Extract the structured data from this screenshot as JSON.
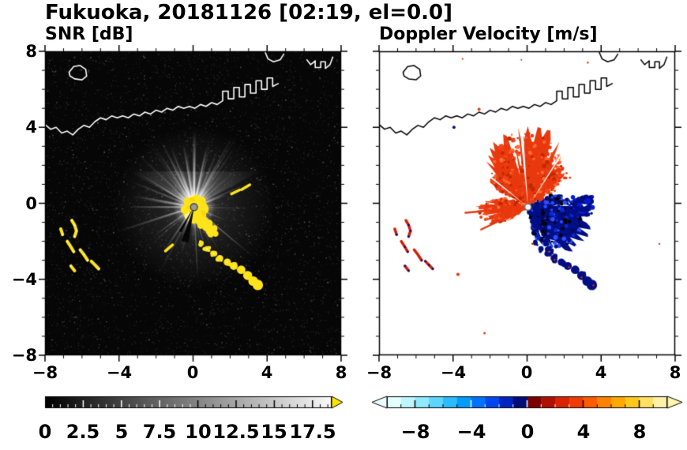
{
  "figure": {
    "title": "Fukuoka, 20181126 [02:19, el=0.0]",
    "station": "Fukuoka",
    "date": "20181126",
    "time": "02:19",
    "elevation": "0.0"
  },
  "chart_data": [
    {
      "id": "snr",
      "type": "heatmap",
      "title": "SNR [dB]",
      "quantity": "signal-to-noise ratio",
      "units": "dB",
      "xlim": [
        -8,
        8
      ],
      "ylim": [
        -8,
        8
      ],
      "xticks": [
        -8,
        -4,
        0,
        4,
        8
      ],
      "yticks": [
        -8,
        -4,
        0,
        4,
        8
      ],
      "xtick_labels": [
        "−8",
        "−4",
        "0",
        "4",
        "8"
      ],
      "ytick_labels": [
        "8",
        "4",
        "0",
        "−4",
        "−8"
      ],
      "minor_tick_step": 1,
      "background_color": "#060606",
      "radar_center": [
        0.05,
        -0.2
      ],
      "echo_summary": "Dark noisy background with bright white interference spokes radiating from the radar at the origin; strong yellow (high SNR) echo cluster just south-east of the radar; yellow clutter patches to the south-west near x=-6.5 and a chain of echoes running south-east toward (3.5,-4.3); Fukuoka coastline drawn in white.",
      "colorbar": {
        "range": [
          0,
          18.75
        ],
        "ticks": [
          0,
          2.5,
          5,
          7.5,
          10,
          12.5,
          15,
          17.5
        ],
        "tick_labels": [
          "0",
          "2.5",
          "5",
          "7.5",
          "10",
          "12.5",
          "15",
          "17.5"
        ],
        "minor_step": 0.5,
        "colors": [
          "#000000",
          "#fafafa"
        ],
        "over_arrow_color": "#ffe400"
      },
      "features": {
        "glow_radius": 1.15,
        "halo_radius": 4.4,
        "haze": {
          "angle": 90,
          "half_width": 62,
          "radius": 4.0
        },
        "random_ray_count": 80,
        "rays": [
          [
            90,
            4.0,
            3,
            0.75
          ],
          [
            100,
            3.4,
            2,
            0.6
          ],
          [
            78,
            3.1,
            2,
            0.6
          ],
          [
            62,
            2.6,
            2,
            0.5
          ],
          [
            48,
            2.2,
            1.5,
            0.45
          ],
          [
            115,
            2.9,
            2,
            0.55
          ],
          [
            130,
            2.5,
            1.5,
            0.5
          ],
          [
            150,
            2.2,
            1.5,
            0.4
          ],
          [
            170,
            3.3,
            2.5,
            0.65
          ],
          [
            180,
            3.6,
            2,
            0.6
          ],
          [
            196,
            2.4,
            1.5,
            0.45
          ],
          [
            215,
            2.7,
            1.5,
            0.5
          ],
          [
            235,
            2.9,
            2,
            0.5
          ],
          [
            250,
            2.2,
            1.5,
            0.45
          ],
          [
            268,
            2.0,
            1.5,
            0.4
          ],
          [
            285,
            2.3,
            1.5,
            0.45
          ],
          [
            300,
            2.6,
            1.5,
            0.5
          ],
          [
            318,
            2.2,
            1.5,
            0.45
          ],
          [
            338,
            1.9,
            1.5,
            0.4
          ],
          [
            20,
            2.0,
            1.5,
            0.4
          ],
          [
            5,
            1.7,
            1,
            0.35
          ]
        ],
        "echo_color": "#ffe41a",
        "echo_core": [
          0.1,
          -0.3
        ],
        "echo_tail": [
          [
            0.3,
            -0.8
          ],
          [
            1.05,
            -1.5
          ]
        ],
        "dash_echoes": [
          [
            2.85,
            0.85,
            30
          ],
          [
            2.3,
            0.6,
            25
          ],
          [
            -1.3,
            -2.35,
            40
          ]
        ],
        "shadow_wedges": [
          [
            255,
            6,
            1.9
          ],
          [
            240,
            3,
            1.5
          ]
        ]
      }
    },
    {
      "id": "velocity",
      "type": "heatmap",
      "title": "Doppler Velocity [m/s]",
      "quantity": "Doppler velocity",
      "units": "m/s",
      "xlim": [
        -8,
        8
      ],
      "ylim": [
        -8,
        8
      ],
      "xticks": [
        -8,
        -4,
        0,
        4,
        8
      ],
      "yticks": [
        -8,
        -4,
        0,
        4,
        8
      ],
      "xtick_labels": [
        "−8",
        "−4",
        "0",
        "4",
        "8"
      ],
      "ytick_labels": [
        "8",
        "4",
        "0",
        "−4",
        "−8"
      ],
      "minor_tick_step": 1,
      "background_color": "#ffffff",
      "radar_center": [
        0.05,
        -0.2
      ],
      "echo_summary": "Red positive velocities (about +2 to +4 m/s) fan out north and west of the radar; dark navy negative velocities (about 0 to -3 m/s) fill the sector east and south-east of the radar; the south-west clutter patches and the south-east echo chain appear as mixed red/navy fragments; coastline drawn in black.",
      "colorbar": {
        "range": [
          -10,
          10
        ],
        "ticks": [
          -8,
          -4,
          0,
          4,
          8
        ],
        "tick_labels": [
          "−8",
          "−4",
          "0",
          "4",
          "8"
        ],
        "minor_step": 1,
        "colors": [
          "#e4ffff",
          "#bdf6ff",
          "#8fe9ff",
          "#5cd6ff",
          "#2bbcff",
          "#009cff",
          "#0072ff",
          "#0047f0",
          "#0024c0",
          "#000c78",
          "#7c0000",
          "#b01000",
          "#d82400",
          "#f03c00",
          "#ff5c00",
          "#ff8200",
          "#ffa800",
          "#ffc81e",
          "#ffe060",
          "#fff2a8"
        ],
        "under_arrow_color": "#eeffff",
        "over_arrow_color": "#fff6b0"
      },
      "features": {
        "toward_color": "#e8380e",
        "away_color": "#000e85",
        "north_fan": {
          "a0": 35,
          "a1": 150,
          "r_base": 2.2,
          "r_amp": 2.0
        },
        "west_fan": {
          "a0": 158,
          "a1": 215,
          "r_base": 1.1,
          "r_amp": 1.7
        },
        "away_fan": {
          "a0": -80,
          "a1": 28,
          "r_base": 1.4,
          "r_amp": 2.0
        },
        "toward_rays": [
          [
            185,
            3.4
          ],
          [
            205,
            2.8
          ]
        ],
        "away_streak": [
          -62,
          3.2
        ],
        "white_slits": [
          [
            95,
            1.2
          ],
          [
            57,
            0.8
          ],
          [
            142,
            1.0
          ]
        ],
        "toward_speckles": [
          "#f04418",
          "#c22800",
          "#ff6a30",
          "#e8380e"
        ],
        "away_speckles": [
          "#000a60",
          "#0a2bd0",
          "#000000",
          "#2e4fff",
          "#000e85"
        ]
      }
    }
  ],
  "coastline": {
    "main": [
      [
        -8,
        4.15
      ],
      [
        -7.7,
        3.9
      ],
      [
        -7.4,
        4.0
      ],
      [
        -7.1,
        3.7
      ],
      [
        -6.8,
        3.8
      ],
      [
        -6.5,
        3.6
      ],
      [
        -6.2,
        3.9
      ],
      [
        -5.9,
        4.1
      ],
      [
        -5.6,
        4.0
      ],
      [
        -5.3,
        4.3
      ],
      [
        -5.0,
        4.5
      ],
      [
        -4.7,
        4.4
      ],
      [
        -4.4,
        4.6
      ],
      [
        -4.1,
        4.5
      ],
      [
        -3.8,
        4.6
      ],
      [
        -3.5,
        4.5
      ],
      [
        -3.2,
        4.7
      ],
      [
        -2.9,
        4.6
      ],
      [
        -2.6,
        4.8
      ],
      [
        -2.3,
        4.7
      ],
      [
        -2.0,
        4.9
      ],
      [
        -1.7,
        4.8
      ],
      [
        -1.4,
        5.0
      ],
      [
        -1.1,
        4.9
      ],
      [
        -0.8,
        5.1
      ],
      [
        -0.5,
        5.0
      ],
      [
        -0.2,
        5.1
      ],
      [
        0.1,
        5.0
      ],
      [
        0.4,
        5.2
      ],
      [
        0.7,
        5.1
      ],
      [
        1.0,
        5.3
      ],
      [
        1.3,
        5.2
      ],
      [
        1.6,
        5.4
      ],
      [
        1.6,
        5.9
      ],
      [
        1.9,
        5.9
      ],
      [
        1.9,
        5.5
      ],
      [
        2.2,
        5.5
      ],
      [
        2.2,
        6.1
      ],
      [
        2.5,
        6.1
      ],
      [
        2.5,
        5.6
      ],
      [
        2.8,
        5.6
      ],
      [
        2.8,
        6.25
      ],
      [
        3.1,
        6.25
      ],
      [
        3.1,
        5.8
      ],
      [
        3.4,
        5.8
      ],
      [
        3.4,
        6.45
      ],
      [
        3.7,
        6.45
      ],
      [
        3.7,
        6.0
      ],
      [
        4.0,
        6.0
      ],
      [
        4.0,
        6.6
      ],
      [
        4.3,
        6.6
      ],
      [
        4.3,
        6.15
      ],
      [
        4.6,
        6.3
      ]
    ],
    "island": [
      [
        -6.7,
        6.9
      ],
      [
        -6.45,
        7.2
      ],
      [
        -6.1,
        7.25
      ],
      [
        -5.8,
        7.05
      ],
      [
        -5.75,
        6.7
      ],
      [
        -6.0,
        6.5
      ],
      [
        -6.4,
        6.55
      ],
      [
        -6.65,
        6.7
      ]
    ],
    "top_islet": [
      [
        3.9,
        7.95
      ],
      [
        4.05,
        7.6
      ],
      [
        4.35,
        7.45
      ],
      [
        4.7,
        7.55
      ],
      [
        4.9,
        7.85
      ]
    ],
    "northeast_piers": [
      [
        6.15,
        7.55
      ],
      [
        6.35,
        7.3
      ],
      [
        6.6,
        7.5
      ],
      [
        6.6,
        7.15
      ],
      [
        6.9,
        7.15
      ],
      [
        6.9,
        7.45
      ],
      [
        7.15,
        7.45
      ],
      [
        7.15,
        7.1
      ],
      [
        7.4,
        7.3
      ],
      [
        7.55,
        7.7
      ]
    ]
  },
  "clutter": {
    "southwest_arcs": [
      [
        [
          -6.55,
          -0.9
        ],
        [
          -6.4,
          -1.15
        ],
        [
          -6.3,
          -1.45
        ],
        [
          -6.4,
          -1.75
        ]
      ],
      [
        [
          -6.8,
          -2.0
        ],
        [
          -6.6,
          -2.3
        ],
        [
          -6.45,
          -2.55
        ]
      ],
      [
        [
          -6.1,
          -2.45
        ],
        [
          -5.9,
          -2.7
        ],
        [
          -5.7,
          -3.0
        ]
      ],
      [
        [
          -5.5,
          -3.05
        ],
        [
          -5.3,
          -3.25
        ],
        [
          -5.1,
          -3.45
        ]
      ],
      [
        [
          -6.6,
          -3.3
        ],
        [
          -6.4,
          -3.55
        ]
      ],
      [
        [
          -7.15,
          -1.35
        ],
        [
          -7.05,
          -1.65
        ]
      ]
    ],
    "southeast_chain": [
      [
        0.45,
        -2.1
      ],
      [
        0.75,
        -2.4
      ],
      [
        1.1,
        -2.65
      ],
      [
        1.45,
        -2.9
      ],
      [
        1.85,
        -3.1
      ],
      [
        2.2,
        -3.3
      ],
      [
        2.6,
        -3.5
      ],
      [
        2.95,
        -3.8
      ],
      [
        3.25,
        -4.1
      ],
      [
        3.5,
        -4.3
      ]
    ]
  }
}
